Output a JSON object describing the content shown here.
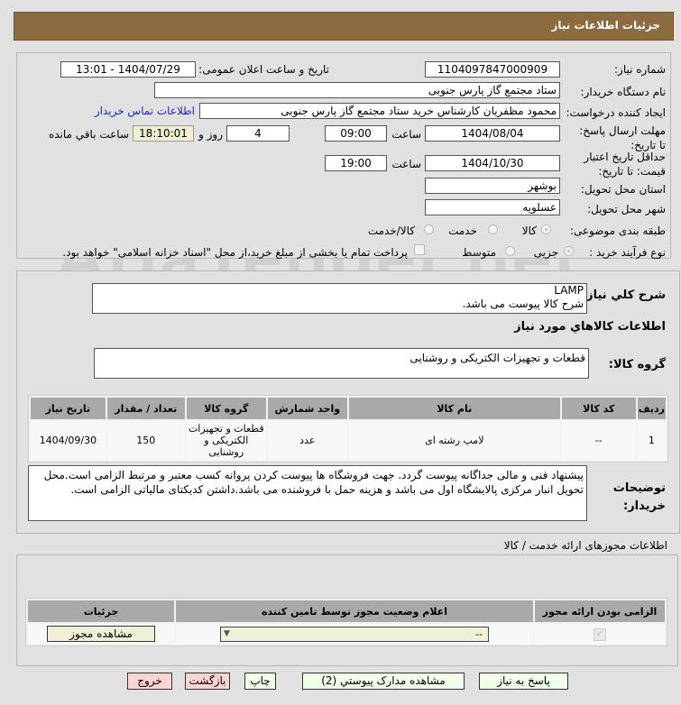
{
  "header": {
    "title": "جزئیات اطلاعات نیاز"
  },
  "watermark": "AriaTender.net",
  "form": {
    "need_number_label": "شماره نیاز:",
    "need_number": "1104097847000909",
    "announce_label": "تاریخ و ساعت اعلان عمومی:",
    "announce_value": "1404/07/29 - 13:01",
    "buyer_label": "نام دستگاه خریدار:",
    "buyer": "ستاد مجتمع گاز پارس جنوبی",
    "creator_label": "ایجاد کننده درخواست:",
    "creator": "محمود مظفریان کارشناس خرید ستاد مجتمع گاز پارس جنوبی",
    "contact_link": "اطلاعات تماس خریدار",
    "deadline_label": "مهلت ارسال پاسخ: تا تاریخ:",
    "deadline_date": "1404/08/04",
    "time_label": "ساعت",
    "deadline_time": "09:00",
    "days": "4",
    "days_label": "روز و",
    "remaining": "18:10:01",
    "remaining_label": "ساعت باقي مانده",
    "validity_label": "حداقل تاریخ اعتبار قیمت: تا تاریخ:",
    "validity_date": "1404/10/30",
    "validity_time": "19:00",
    "province_label": "استان محل تحویل:",
    "province": "بوشهر",
    "city_label": "شهر محل تحویل:",
    "city": "عسلویه",
    "category_label": "طبقه بندی موضوعی:",
    "category_options": [
      "کالا",
      "خدمت",
      "کالا/خدمت"
    ],
    "category_selected": "کالا",
    "process_label": "نوع فرآیند خرید :",
    "process_options": [
      "جزیی",
      "متوسط"
    ],
    "process_selected": "جزیی",
    "payment_note": "پرداخت تمام یا بخشی از مبلغ خرید،از محل \"اسناد خزانه اسلامی\" خواهد بود."
  },
  "details": {
    "summary_label": "شرح کلي نیاز:",
    "summary_line1": "LAMP",
    "summary_line2": "شرح کالا پیوست می باشد.",
    "items_heading": "اطلاعات کالاهاي مورد نیاز",
    "group_label": "گروه کالا:",
    "group_value": "قطعات و تجهیزات الکتریکی و روشنایی",
    "table": {
      "headers": [
        "ردیف",
        "کد کالا",
        "نام کالا",
        "واحد شمارش",
        "گروه کالا",
        "تعداد / مقدار",
        "تاریخ نیاز"
      ],
      "rows": [
        [
          "1",
          "--",
          "لامپ رشته ای",
          "عدد",
          "قطعات و تجهیزات الکتریکی و روشنایی",
          "150",
          "1404/09/30"
        ]
      ]
    },
    "notes_label": "توضیحات خریدار:",
    "notes": "پیشنهاد فنی و مالی جداگانه پیوست گردد. جهت فروشگاه ها پیوست کردن پروانه کسب معتبر و مرتبط الزامی است.محل تحویل انبار مرکزی پالایشگاه اول می باشد و هزینه حمل با فروشنده می باشد.داشتن کدیکتای مالیاتی الزامی است."
  },
  "permits": {
    "heading": "اطلاعات مجوزهای ارائه خدمت / کالا",
    "headers": [
      "الزامی بودن ارائه مجوز",
      "اعلام وضعیت مجوز توسط تامین کننده",
      "جزئیات"
    ],
    "select_value": "--",
    "view_button": "مشاهده مجوز",
    "required_checked": true
  },
  "buttons": {
    "reply": "پاسخ به نیاز",
    "attachments": "مشاهده مدارک پیوستي (2)",
    "print": "چاپ",
    "back": "بازگشت",
    "exit": "خروج"
  }
}
